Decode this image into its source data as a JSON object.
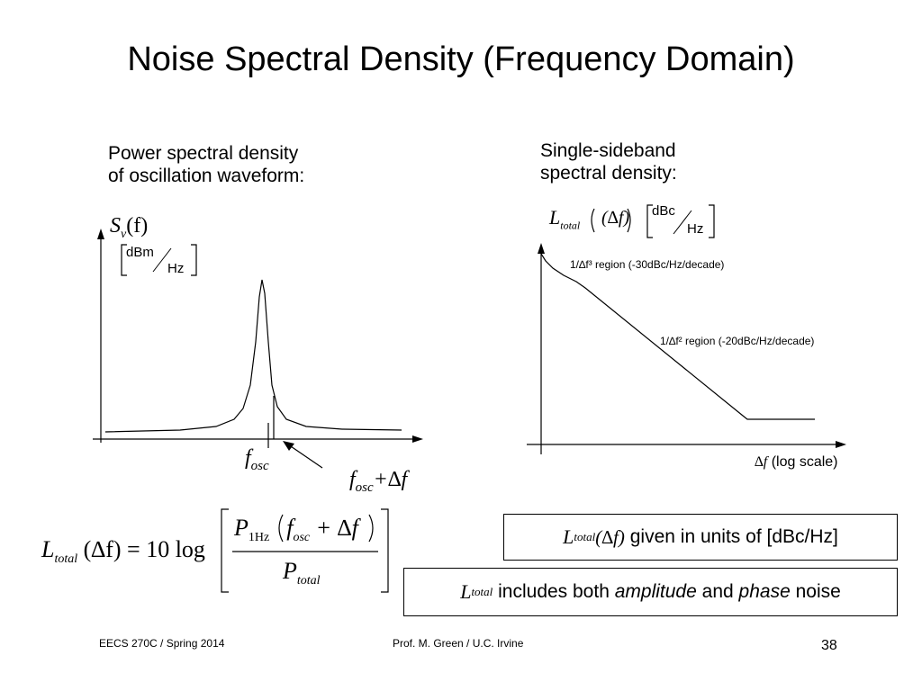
{
  "slide": {
    "title": "Noise Spectral Density (Frequency Domain)",
    "left_caption_line1": "Power spectral density",
    "left_caption_line2": "of oscillation waveform:",
    "right_caption_line1": "Single-sideband",
    "right_caption_line2": "spectral density:"
  },
  "left_plot": {
    "ylabel_main": "S",
    "ylabel_sub": "v",
    "ylabel_arg": "(f)",
    "unit_num": "dBm",
    "unit_den": "Hz",
    "label_fosc_main": "f",
    "label_fosc_sub": "osc",
    "label_fdelta_main": "f",
    "label_fdelta_sub": "osc",
    "label_fdelta_tail": "+∆f"
  },
  "right_plot": {
    "ylabel_main": "L",
    "ylabel_sub": "total",
    "ylabel_arg": "(∆f)",
    "unit_num": "dBc",
    "unit_den": "Hz",
    "region1_label": "1/∆f³ region (-30dBc/Hz/decade)",
    "region2_label": "1/∆f² region (-20dBc/Hz/decade)",
    "xlabel_symbol": "∆f",
    "xlabel_text": "(log scale)"
  },
  "equation": {
    "lhs_main": "L",
    "lhs_sub": "total",
    "lhs_arg": "(∆f)",
    "equals": "= 10 log",
    "num_main": "P",
    "num_sub": "1Hz",
    "num_arg_main": "f",
    "num_arg_sub": "osc",
    "num_arg_tail": "+ ∆f",
    "den_main": "P",
    "den_sub": "total"
  },
  "boxes": {
    "box1_main": "L",
    "box1_sub": "total",
    "box1_arg": "(∆f)",
    "box1_text": "given in units of [dBc/Hz]",
    "box2_main": "L",
    "box2_sub": "total",
    "box2_text1": "includes both",
    "box2_word1": "amplitude",
    "box2_text2": "and",
    "box2_word2": "phase",
    "box2_text3": "noise"
  },
  "footer": {
    "left": "EECS 270C / Spring 2014",
    "center": "Prof. M. Green / U.C. Irvine",
    "page": "38"
  }
}
